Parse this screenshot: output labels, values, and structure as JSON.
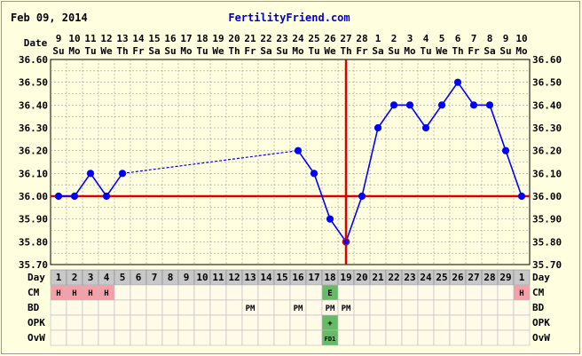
{
  "header": {
    "date": "Feb 09, 2014",
    "site": "FertilityFriend.com"
  },
  "row_labels": {
    "date": "Date",
    "day": "Day",
    "cm": "CM",
    "bd": "BD",
    "opk": "OPK",
    "ovw": "OvW"
  },
  "colors": {
    "background": "#ffffe0",
    "curve": "#0000ff",
    "coverline": "#dd0000",
    "ovulation_line": "#dd0000",
    "cm_h": "#f4a0a8",
    "cm_e": "#66bb66",
    "opk_positive": "#66bb66",
    "day_row": "#c8c8c8"
  },
  "chart_data": {
    "type": "line",
    "title": "",
    "xlabel": "Day",
    "ylabel": "",
    "ylim": [
      35.7,
      36.6
    ],
    "yticks": [
      "35.70",
      "35.80",
      "35.90",
      "36.00",
      "36.10",
      "36.20",
      "36.30",
      "36.40",
      "36.50",
      "36.60"
    ],
    "dates": [
      "9",
      "10",
      "11",
      "12",
      "13",
      "14",
      "15",
      "16",
      "17",
      "18",
      "19",
      "20",
      "21",
      "22",
      "23",
      "24",
      "25",
      "26",
      "27",
      "28",
      "1",
      "2",
      "3",
      "4",
      "5",
      "6",
      "7",
      "8",
      "9",
      "10"
    ],
    "weekdays": [
      "Su",
      "Mo",
      "Tu",
      "We",
      "Th",
      "Fr",
      "Sa",
      "Su",
      "Mo",
      "Tu",
      "We",
      "Th",
      "Fr",
      "Sa",
      "Su",
      "Mo",
      "Tu",
      "We",
      "Th",
      "Fr",
      "Sa",
      "Su",
      "Mo",
      "Tu",
      "We",
      "Th",
      "Fr",
      "Sa",
      "Su",
      "Mo"
    ],
    "cycle_days": [
      "1",
      "2",
      "3",
      "4",
      "5",
      "6",
      "7",
      "8",
      "9",
      "10",
      "11",
      "12",
      "13",
      "14",
      "15",
      "16",
      "17",
      "18",
      "19",
      "20",
      "21",
      "22",
      "23",
      "24",
      "25",
      "26",
      "27",
      "28",
      "29",
      "1"
    ],
    "series": [
      {
        "values": [
          36.0,
          36.0,
          36.1,
          36.0,
          36.1,
          null,
          null,
          null,
          null,
          null,
          null,
          null,
          null,
          null,
          null,
          36.2,
          36.1,
          35.9,
          35.8,
          36.0,
          36.3,
          36.4,
          36.4,
          36.3,
          36.4,
          36.5,
          36.4,
          36.4,
          36.2,
          36.0
        ]
      }
    ],
    "gap_from_day": 5,
    "gap_to_day": 16,
    "coverline": 36.0,
    "ovulation_day": 19,
    "cm": [
      "H",
      "H",
      "H",
      "H",
      "",
      "",
      "",
      "",
      "",
      "",
      "",
      "",
      "",
      "",
      "",
      "",
      "",
      "E",
      "",
      "",
      "",
      "",
      "",
      "",
      "",
      "",
      "",
      "",
      "",
      "H"
    ],
    "bd": [
      "",
      "",
      "",
      "",
      "",
      "",
      "",
      "",
      "",
      "",
      "",
      "",
      "PM",
      "",
      "",
      "PM",
      "",
      "PM",
      "PM",
      "",
      "",
      "",
      "",
      "",
      "",
      "",
      "",
      "",
      "",
      ""
    ],
    "opk": [
      "",
      "",
      "",
      "",
      "",
      "",
      "",
      "",
      "",
      "",
      "",
      "",
      "",
      "",
      "",
      "",
      "",
      "+",
      "",
      "",
      "",
      "",
      "",
      "",
      "",
      "",
      "",
      "",
      "",
      ""
    ],
    "ovw": [
      "",
      "",
      "",
      "",
      "",
      "",
      "",
      "",
      "",
      "",
      "",
      "",
      "",
      "",
      "",
      "",
      "",
      "FD1",
      "",
      "",
      "",
      "",
      "",
      "",
      "",
      "",
      "",
      "",
      "",
      ""
    ],
    "grid": true
  }
}
